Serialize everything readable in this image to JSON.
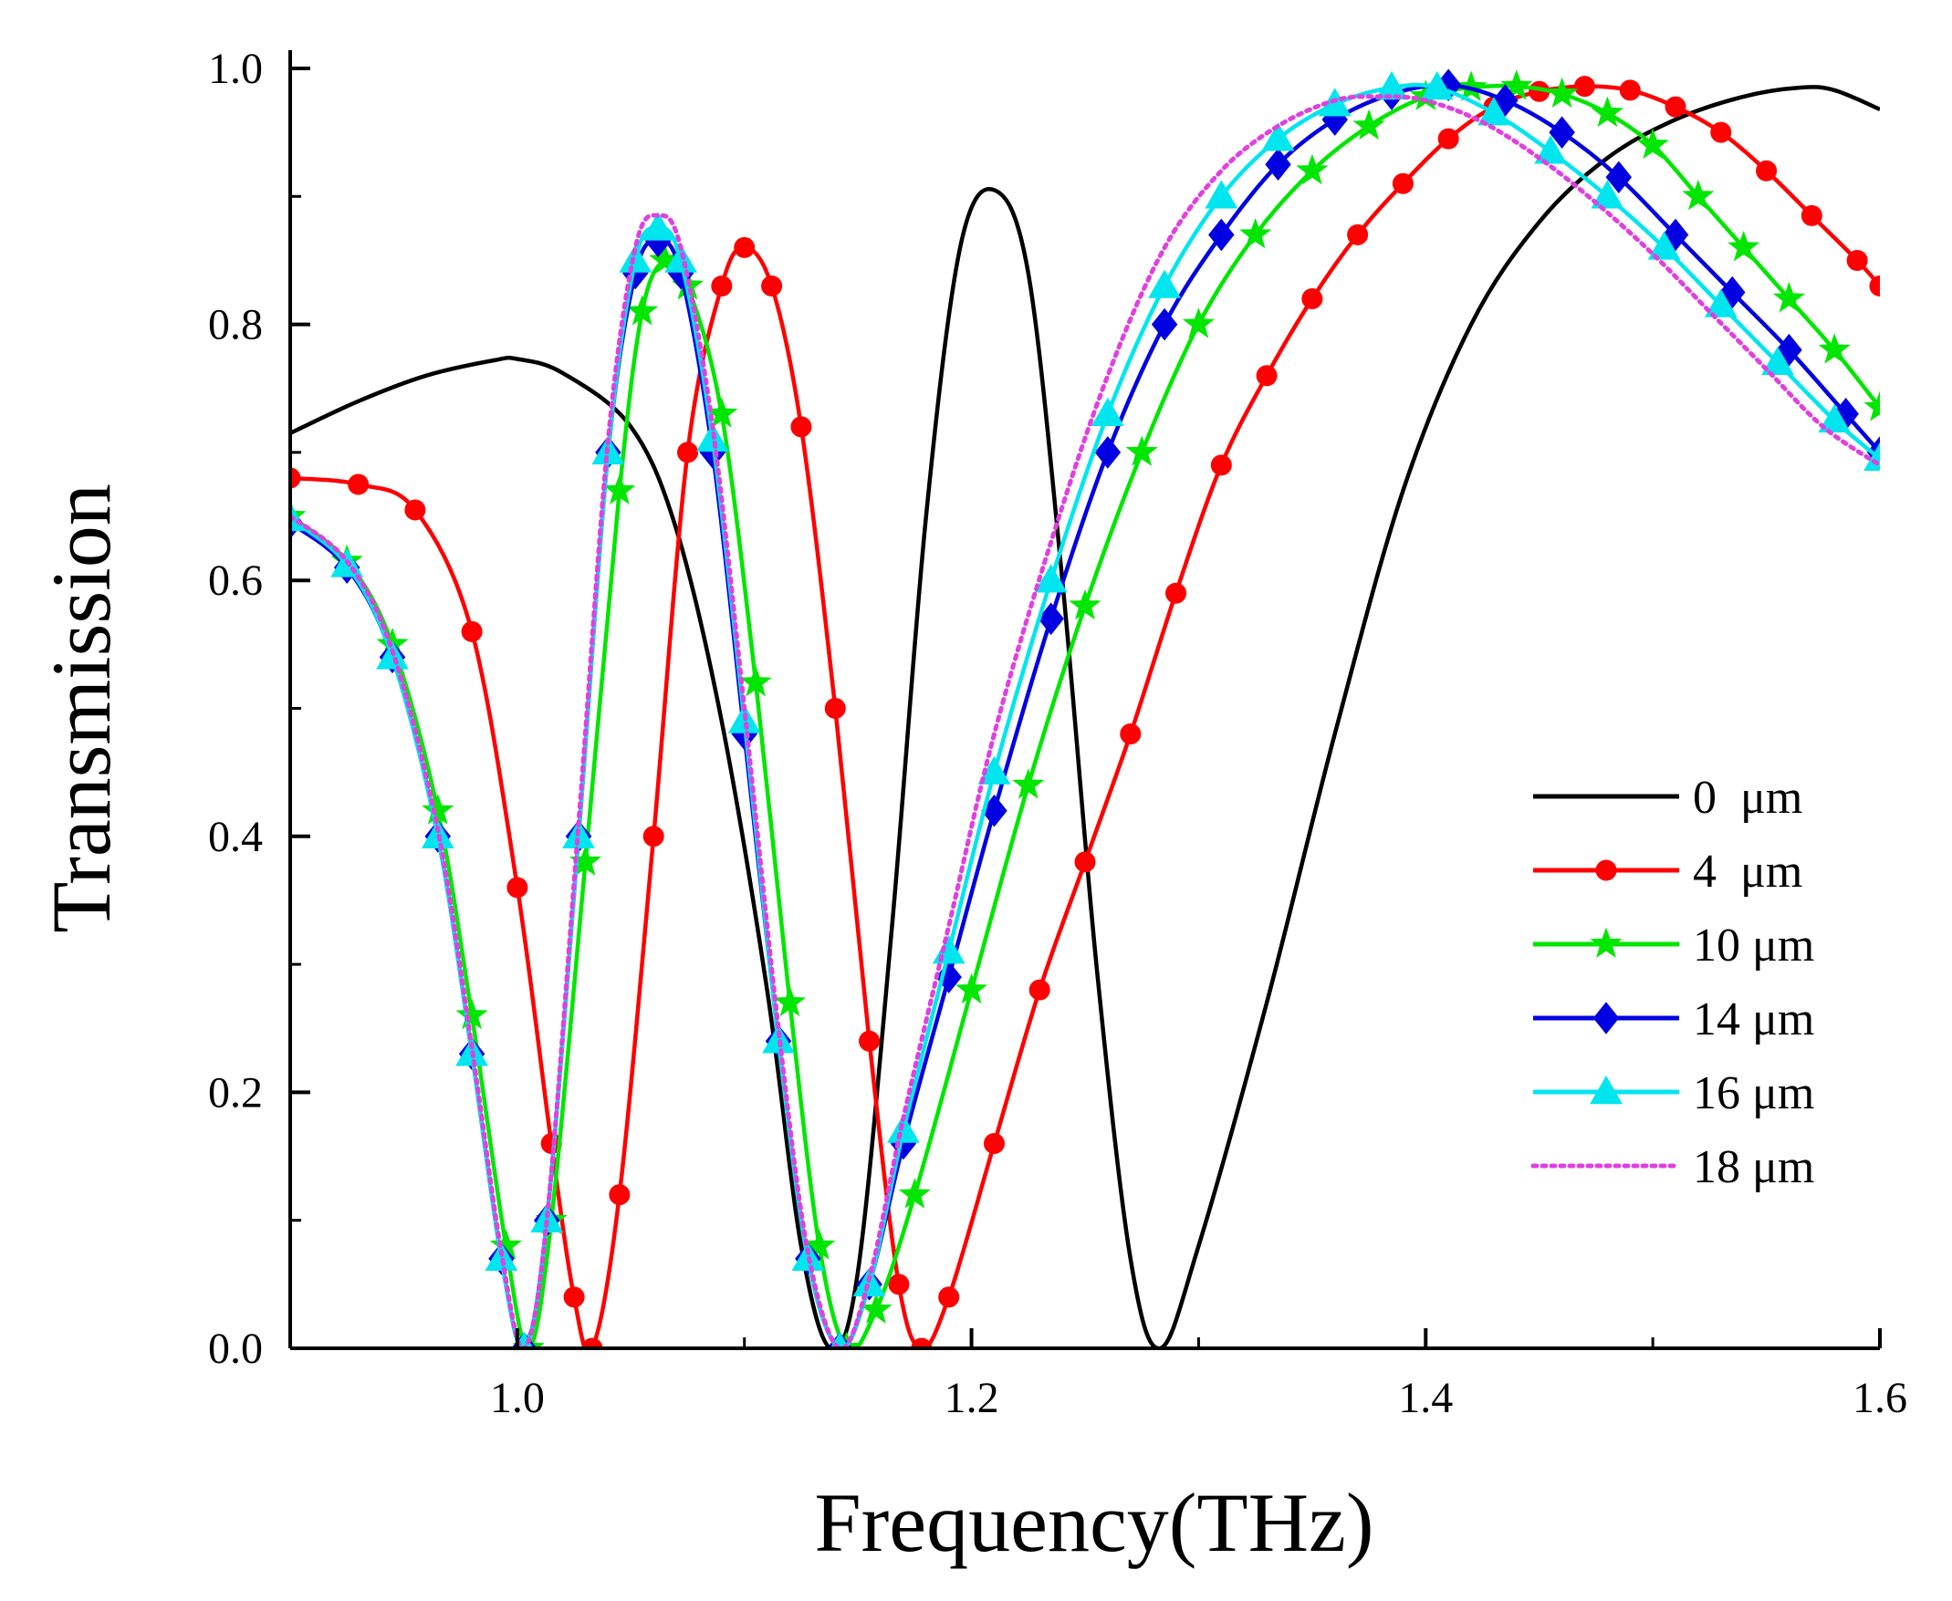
{
  "chart_data": {
    "type": "line",
    "title": "",
    "xlabel": "Frequency(THz)",
    "ylabel": "Transmission",
    "xlim": [
      0.9,
      1.6
    ],
    "ylim": [
      0.0,
      1.0
    ],
    "x_ticks": [
      1.0,
      1.2,
      1.4,
      1.6
    ],
    "x_tick_labels": [
      "1.0",
      "1.2",
      "1.4",
      "1.6"
    ],
    "y_ticks": [
      0.0,
      0.2,
      0.4,
      0.6,
      0.8,
      1.0
    ],
    "y_tick_labels": [
      "0.0",
      "0.2",
      "0.4",
      "0.6",
      "0.8",
      "1.0"
    ],
    "grid": false,
    "legend_position": "bottom-right",
    "series": [
      {
        "name": "0  μm",
        "color": "#000000",
        "marker": "none",
        "dash": "solid",
        "points": [
          [
            0.9,
            0.715
          ],
          [
            0.93,
            0.74
          ],
          [
            0.96,
            0.76
          ],
          [
            0.99,
            0.772
          ],
          [
            1.0,
            0.773
          ],
          [
            1.02,
            0.762
          ],
          [
            1.05,
            0.72
          ],
          [
            1.07,
            0.64
          ],
          [
            1.09,
            0.49
          ],
          [
            1.11,
            0.28
          ],
          [
            1.125,
            0.08
          ],
          [
            1.138,
            0.0
          ],
          [
            1.15,
            0.06
          ],
          [
            1.165,
            0.33
          ],
          [
            1.18,
            0.65
          ],
          [
            1.195,
            0.86
          ],
          [
            1.21,
            0.905
          ],
          [
            1.225,
            0.84
          ],
          [
            1.24,
            0.6
          ],
          [
            1.255,
            0.3
          ],
          [
            1.27,
            0.07
          ],
          [
            1.283,
            0.0
          ],
          [
            1.3,
            0.08
          ],
          [
            1.33,
            0.27
          ],
          [
            1.36,
            0.48
          ],
          [
            1.39,
            0.67
          ],
          [
            1.42,
            0.8
          ],
          [
            1.45,
            0.88
          ],
          [
            1.48,
            0.93
          ],
          [
            1.51,
            0.96
          ],
          [
            1.54,
            0.978
          ],
          [
            1.565,
            0.985
          ],
          [
            1.58,
            0.983
          ],
          [
            1.6,
            0.968
          ]
        ]
      },
      {
        "name": "4  μm",
        "color": "#ff0000",
        "marker": "circle",
        "dash": "solid",
        "points": [
          [
            0.9,
            0.68
          ],
          [
            0.93,
            0.675
          ],
          [
            0.955,
            0.655
          ],
          [
            0.98,
            0.56
          ],
          [
            1.0,
            0.36
          ],
          [
            1.015,
            0.16
          ],
          [
            1.025,
            0.04
          ],
          [
            1.033,
            0.0
          ],
          [
            1.045,
            0.12
          ],
          [
            1.06,
            0.4
          ],
          [
            1.075,
            0.7
          ],
          [
            1.09,
            0.83
          ],
          [
            1.1,
            0.86
          ],
          [
            1.112,
            0.83
          ],
          [
            1.125,
            0.72
          ],
          [
            1.14,
            0.5
          ],
          [
            1.155,
            0.24
          ],
          [
            1.168,
            0.05
          ],
          [
            1.178,
            0.0
          ],
          [
            1.19,
            0.04
          ],
          [
            1.21,
            0.16
          ],
          [
            1.23,
            0.28
          ],
          [
            1.25,
            0.38
          ],
          [
            1.27,
            0.48
          ],
          [
            1.29,
            0.59
          ],
          [
            1.31,
            0.69
          ],
          [
            1.33,
            0.76
          ],
          [
            1.35,
            0.82
          ],
          [
            1.37,
            0.87
          ],
          [
            1.39,
            0.91
          ],
          [
            1.41,
            0.945
          ],
          [
            1.43,
            0.97
          ],
          [
            1.45,
            0.982
          ],
          [
            1.47,
            0.986
          ],
          [
            1.49,
            0.983
          ],
          [
            1.51,
            0.97
          ],
          [
            1.53,
            0.95
          ],
          [
            1.55,
            0.92
          ],
          [
            1.57,
            0.885
          ],
          [
            1.59,
            0.85
          ],
          [
            1.6,
            0.83
          ]
        ]
      },
      {
        "name": "10 μm",
        "color": "#00e600",
        "marker": "star",
        "dash": "solid",
        "points": [
          [
            0.9,
            0.65
          ],
          [
            0.925,
            0.615
          ],
          [
            0.945,
            0.55
          ],
          [
            0.965,
            0.42
          ],
          [
            0.98,
            0.26
          ],
          [
            0.995,
            0.08
          ],
          [
            1.005,
            0.0
          ],
          [
            1.015,
            0.1
          ],
          [
            1.03,
            0.38
          ],
          [
            1.045,
            0.67
          ],
          [
            1.055,
            0.81
          ],
          [
            1.065,
            0.85
          ],
          [
            1.075,
            0.83
          ],
          [
            1.09,
            0.73
          ],
          [
            1.105,
            0.52
          ],
          [
            1.12,
            0.27
          ],
          [
            1.133,
            0.08
          ],
          [
            1.145,
            0.0
          ],
          [
            1.158,
            0.03
          ],
          [
            1.175,
            0.12
          ],
          [
            1.2,
            0.28
          ],
          [
            1.225,
            0.44
          ],
          [
            1.25,
            0.58
          ],
          [
            1.275,
            0.7
          ],
          [
            1.3,
            0.8
          ],
          [
            1.325,
            0.87
          ],
          [
            1.35,
            0.92
          ],
          [
            1.375,
            0.955
          ],
          [
            1.4,
            0.978
          ],
          [
            1.42,
            0.985
          ],
          [
            1.44,
            0.986
          ],
          [
            1.46,
            0.98
          ],
          [
            1.48,
            0.965
          ],
          [
            1.5,
            0.94
          ],
          [
            1.52,
            0.9
          ],
          [
            1.54,
            0.86
          ],
          [
            1.56,
            0.82
          ],
          [
            1.58,
            0.78
          ],
          [
            1.6,
            0.735
          ]
        ]
      },
      {
        "name": "14 μm",
        "color": "#0000e0",
        "marker": "diamond",
        "dash": "solid",
        "points": [
          [
            0.9,
            0.645
          ],
          [
            0.925,
            0.61
          ],
          [
            0.945,
            0.54
          ],
          [
            0.965,
            0.4
          ],
          [
            0.98,
            0.23
          ],
          [
            0.993,
            0.07
          ],
          [
            1.003,
            0.0
          ],
          [
            1.013,
            0.1
          ],
          [
            1.027,
            0.4
          ],
          [
            1.04,
            0.7
          ],
          [
            1.052,
            0.84
          ],
          [
            1.062,
            0.865
          ],
          [
            1.072,
            0.84
          ],
          [
            1.086,
            0.7
          ],
          [
            1.1,
            0.48
          ],
          [
            1.115,
            0.24
          ],
          [
            1.128,
            0.07
          ],
          [
            1.142,
            0.0
          ],
          [
            1.155,
            0.05
          ],
          [
            1.17,
            0.16
          ],
          [
            1.19,
            0.29
          ],
          [
            1.21,
            0.42
          ],
          [
            1.235,
            0.57
          ],
          [
            1.26,
            0.7
          ],
          [
            1.285,
            0.8
          ],
          [
            1.31,
            0.87
          ],
          [
            1.335,
            0.925
          ],
          [
            1.36,
            0.96
          ],
          [
            1.385,
            0.98
          ],
          [
            1.41,
            0.987
          ],
          [
            1.435,
            0.975
          ],
          [
            1.46,
            0.95
          ],
          [
            1.485,
            0.915
          ],
          [
            1.51,
            0.87
          ],
          [
            1.535,
            0.825
          ],
          [
            1.56,
            0.78
          ],
          [
            1.585,
            0.73
          ],
          [
            1.6,
            0.7
          ]
        ]
      },
      {
        "name": "16 μm",
        "color": "#00e5ee",
        "marker": "triangle",
        "dash": "solid",
        "points": [
          [
            0.9,
            0.648
          ],
          [
            0.925,
            0.612
          ],
          [
            0.945,
            0.54
          ],
          [
            0.965,
            0.4
          ],
          [
            0.98,
            0.23
          ],
          [
            0.993,
            0.07
          ],
          [
            1.003,
            0.0
          ],
          [
            1.013,
            0.1
          ],
          [
            1.027,
            0.4
          ],
          [
            1.04,
            0.7
          ],
          [
            1.052,
            0.85
          ],
          [
            1.062,
            0.875
          ],
          [
            1.072,
            0.85
          ],
          [
            1.086,
            0.71
          ],
          [
            1.1,
            0.49
          ],
          [
            1.115,
            0.24
          ],
          [
            1.128,
            0.07
          ],
          [
            1.142,
            0.0
          ],
          [
            1.155,
            0.05
          ],
          [
            1.17,
            0.17
          ],
          [
            1.19,
            0.31
          ],
          [
            1.21,
            0.45
          ],
          [
            1.235,
            0.6
          ],
          [
            1.26,
            0.73
          ],
          [
            1.285,
            0.83
          ],
          [
            1.31,
            0.9
          ],
          [
            1.335,
            0.945
          ],
          [
            1.36,
            0.972
          ],
          [
            1.385,
            0.985
          ],
          [
            1.405,
            0.985
          ],
          [
            1.43,
            0.965
          ],
          [
            1.455,
            0.935
          ],
          [
            1.48,
            0.9
          ],
          [
            1.505,
            0.86
          ],
          [
            1.53,
            0.815
          ],
          [
            1.555,
            0.77
          ],
          [
            1.58,
            0.725
          ],
          [
            1.6,
            0.695
          ]
        ]
      },
      {
        "name": "18 μm",
        "color": "#e040e0",
        "marker": "none",
        "dash": "dotted",
        "points": [
          [
            0.9,
            0.65
          ],
          [
            0.925,
            0.615
          ],
          [
            0.945,
            0.545
          ],
          [
            0.965,
            0.405
          ],
          [
            0.98,
            0.235
          ],
          [
            0.993,
            0.075
          ],
          [
            1.003,
            0.0
          ],
          [
            1.013,
            0.1
          ],
          [
            1.027,
            0.41
          ],
          [
            1.04,
            0.71
          ],
          [
            1.052,
            0.86
          ],
          [
            1.062,
            0.885
          ],
          [
            1.072,
            0.86
          ],
          [
            1.086,
            0.72
          ],
          [
            1.1,
            0.5
          ],
          [
            1.115,
            0.25
          ],
          [
            1.128,
            0.075
          ],
          [
            1.142,
            0.0
          ],
          [
            1.155,
            0.055
          ],
          [
            1.17,
            0.18
          ],
          [
            1.19,
            0.33
          ],
          [
            1.21,
            0.48
          ],
          [
            1.235,
            0.63
          ],
          [
            1.26,
            0.76
          ],
          [
            1.285,
            0.86
          ],
          [
            1.31,
            0.92
          ],
          [
            1.335,
            0.955
          ],
          [
            1.36,
            0.975
          ],
          [
            1.38,
            0.978
          ],
          [
            1.4,
            0.975
          ],
          [
            1.425,
            0.958
          ],
          [
            1.45,
            0.93
          ],
          [
            1.475,
            0.895
          ],
          [
            1.5,
            0.855
          ],
          [
            1.525,
            0.81
          ],
          [
            1.55,
            0.765
          ],
          [
            1.575,
            0.72
          ],
          [
            1.6,
            0.69
          ]
        ]
      }
    ]
  }
}
